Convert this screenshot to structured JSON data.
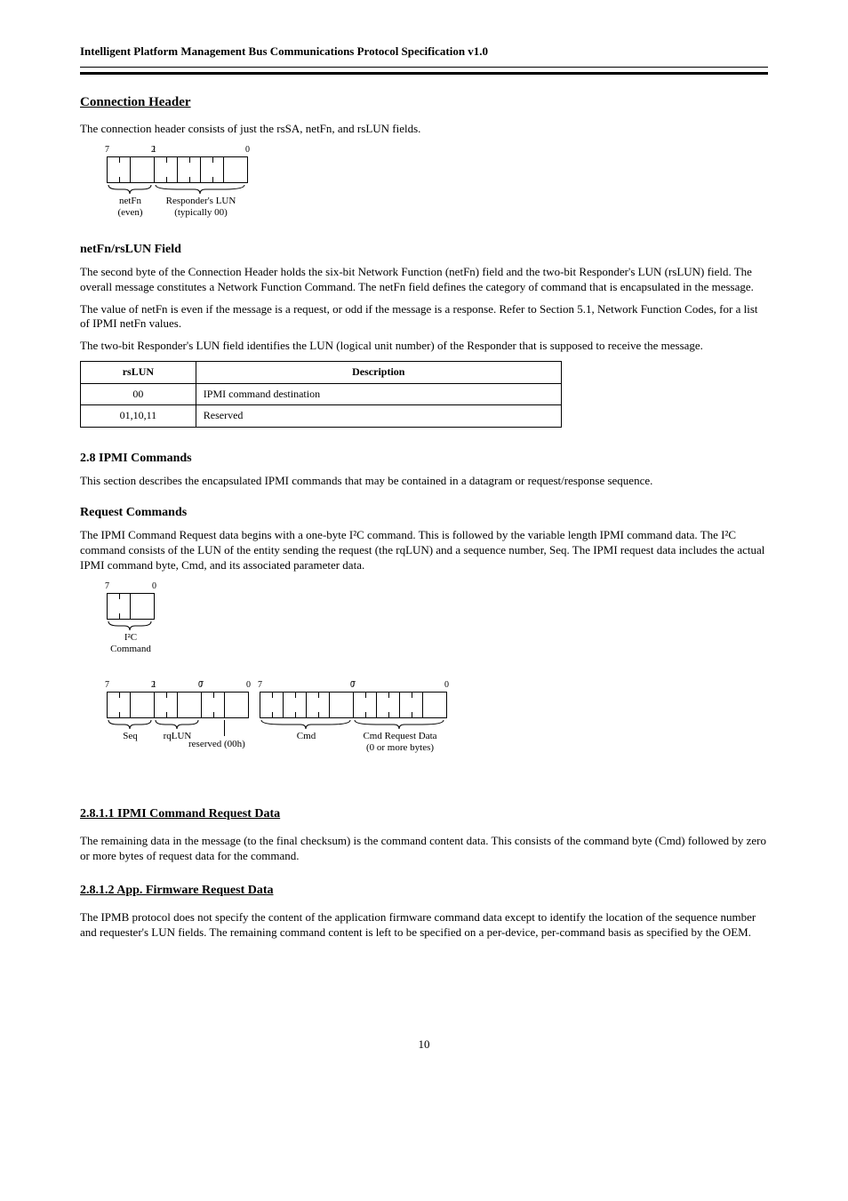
{
  "header": {
    "doc_title": "Intelligent Platform Management Bus Communications Protocol Specification v1.0"
  },
  "sections": {
    "connection_header": {
      "title": "Connection Header",
      "intro": "The connection header consists of just the rsSA, netFn, and rsLUN fields.",
      "diagram": {
        "bit_hi": "7",
        "bit_lo": "0",
        "groups": [
          {
            "width_cells": 2,
            "bit_left": "7",
            "bit_right": "2",
            "label_lines": [
              "netFn",
              "(even)"
            ]
          },
          {
            "width_cells": 4,
            "bit_left": "1",
            "bit_right": "0",
            "label_lines": [
              "Responder's LUN",
              "(typically 00)"
            ]
          }
        ]
      }
    },
    "netfn_rslun": {
      "heading": "netFn/rsLUN Field",
      "p1": "The second byte of the Connection Header holds the six-bit Network Function (netFn) field and the two-bit Responder's LUN (rsLUN) field. The overall message constitutes a Network Function Command. The netFn field defines the category of command that is encapsulated in the message.",
      "p2": "The value of netFn is even if the message is a request, or odd if the message is a response. Refer to Section 5.1, Network Function Codes, for a list of IPMI netFn values.",
      "p3": "The two-bit Responder's LUN field identifies the LUN (logical unit number) of the Responder that is supposed to receive the message."
    },
    "rslun_table": {
      "columns": [
        "rsLUN",
        "Description"
      ],
      "rows": [
        [
          "00",
          "IPMI command destination"
        ],
        [
          "01,10,11",
          "Reserved"
        ]
      ]
    },
    "ipmi_commands": {
      "heading": "2.8  IPMI Commands",
      "intro": "This section describes the encapsulated IPMI commands that may be contained in a datagram or request/response sequence."
    },
    "request_commands": {
      "heading": "Request Commands",
      "p1": "The IPMI Command Request data begins with a one-byte I²C command. This is followed by the variable length IPMI command data. The I²C command consists of the LUN of the entity sending the request (the rqLUN) and a sequence number, Seq. The IPMI request data includes the actual IPMI command byte, Cmd, and its associated parameter data.",
      "diagram_i2c": {
        "groups": [
          {
            "width_cells": 2,
            "bit_left": "7",
            "bit_right": "0",
            "label_lines": [
              "I²C",
              "Command"
            ]
          }
        ]
      },
      "diagram_full": {
        "groups": [
          {
            "width_cells": 2,
            "bit_left": "7",
            "bit_right": "2",
            "label_lines": [
              "Seq"
            ]
          },
          {
            "width_cells": 2,
            "bit_left": "1",
            "bit_right": "0",
            "label_lines": [
              "rqLUN"
            ]
          },
          {
            "width_cells": 2,
            "bit_left": "7",
            "bit_right": "0",
            "label_lines": [],
            "reserved_below": "reserved (00h)"
          },
          {
            "width_cells": 4,
            "bit_left": "7",
            "bit_right": "0",
            "label_lines": [
              "Cmd"
            ]
          },
          {
            "width_cells": 4,
            "bit_left": "7",
            "bit_right": "0",
            "label_lines": [
              "Cmd Request Data",
              "(0 or more bytes)"
            ]
          }
        ]
      }
    },
    "ipmi_request_data": {
      "title": "2.8.1.1  IPMI Command Request Data",
      "body": "The remaining data in the message (to the final checksum) is the command content data. This consists of the command byte (Cmd) followed by zero or more bytes of request data for the command."
    },
    "appfw_request_data": {
      "title": "2.8.1.2  App. Firmware Request Data",
      "body": "The IPMB protocol does not specify the content of the application firmware command data except to identify the location of the sequence number and requester's LUN fields. The remaining command content is left to be specified on a per-device, per-command basis as specified by the OEM."
    }
  },
  "footer": {
    "page_num": "10"
  }
}
